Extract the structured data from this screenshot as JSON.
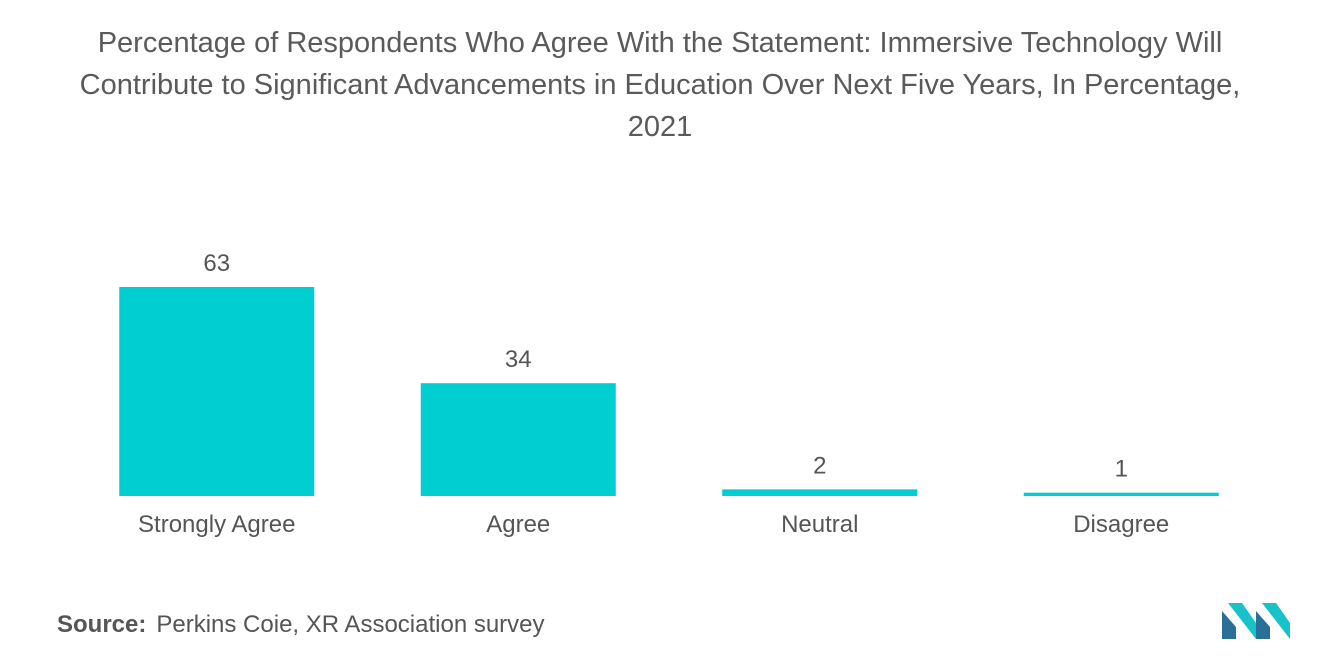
{
  "title_lines": [
    "Percentage of Respondents Who Agree With the Statement: Immersive Technology Will",
    "Contribute to Significant Advancements in Education Over Next Five Years, In Percentage,",
    "2021"
  ],
  "source": {
    "label": "Source:",
    "text": "Perkins Coie, XR Association survey"
  },
  "colors": {
    "bar": "#00ced1",
    "text": "#555555",
    "logo_dark": "#2a6f97",
    "logo_light": "#17c2c8"
  },
  "logo_icon": "brand-logo-icon",
  "chart_data": {
    "type": "bar",
    "title": "Percentage of Respondents Who Agree With the Statement: Immersive Technology Will Contribute to Significant Advancements in Education Over Next Five Years, In Percentage, 2021",
    "categories": [
      "Strongly Agree",
      "Agree",
      "Neutral",
      "Disagree"
    ],
    "values": [
      63,
      34,
      2,
      1
    ],
    "value_labels": [
      "63",
      "34",
      "2",
      "1"
    ],
    "xlabel": "",
    "ylabel": "",
    "ylim": [
      0,
      63
    ],
    "grid": false,
    "legend": "none"
  }
}
